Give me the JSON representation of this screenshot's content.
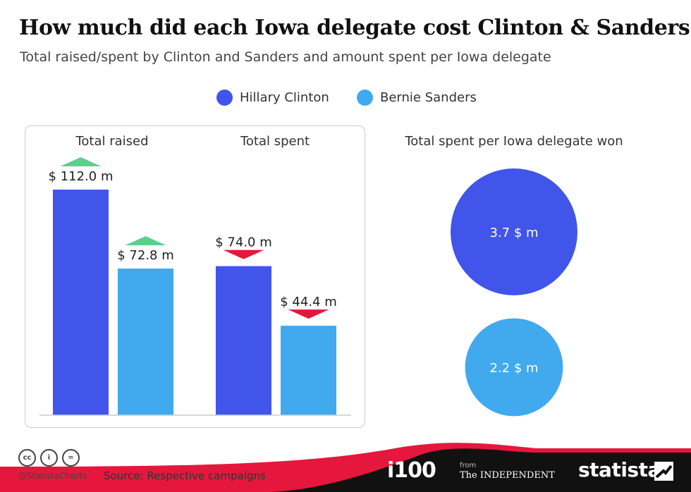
{
  "title": "How much did each Iowa delegate cost Clinton & Sanders?",
  "subtitle": "Total raised/spent by Clinton and Sanders and amount spent per Iowa delegate",
  "colors": {
    "clinton": "#4155ea",
    "sanders": "#41a9ee",
    "up": "#5ad08c",
    "down": "#e5173d",
    "footer": "#111111",
    "accent_red": "#e5173d"
  },
  "chart_data": [
    {
      "type": "bar",
      "group_labels": [
        "Total raised",
        "Total spent"
      ],
      "series": [
        {
          "name": "Hillary Clinton",
          "values": [
            112.0,
            74.0
          ]
        },
        {
          "name": "Bernie Sanders",
          "values": [
            72.8,
            44.4
          ]
        }
      ],
      "value_labels": [
        [
          "$ 112.0 m",
          "$ 74.0 m"
        ],
        [
          "$ 72.8 m",
          "$ 44.4 m"
        ]
      ],
      "arrows": [
        [
          "up",
          "down"
        ],
        [
          "up",
          "down"
        ]
      ],
      "unit": "$ m",
      "ylim": [
        0,
        112.0
      ],
      "grid": false
    },
    {
      "type": "bubble",
      "title": "Total spent per Iowa delegate won",
      "series": [
        {
          "name": "Hillary Clinton",
          "value": 3.7,
          "label": "3.7 $ m"
        },
        {
          "name": "Bernie Sanders",
          "value": 2.2,
          "label": "2.2 $ m"
        }
      ]
    }
  ],
  "legend": [
    {
      "label": "Hillary Clinton",
      "color": "#4155ea"
    },
    {
      "label": "Bernie Sanders",
      "color": "#41a9ee"
    }
  ],
  "footer": {
    "cc_icons": [
      "cc-icon",
      "by-icon",
      "nd-icon"
    ],
    "cc_glyphs": [
      "cc",
      "i",
      "="
    ],
    "handle": "@StatistaCharts",
    "source": "Source: Respective campaigns",
    "brand_i100": "i100",
    "brand_from": "from",
    "brand_independent": "The INDEPENDENT",
    "brand_statista": "statista"
  }
}
